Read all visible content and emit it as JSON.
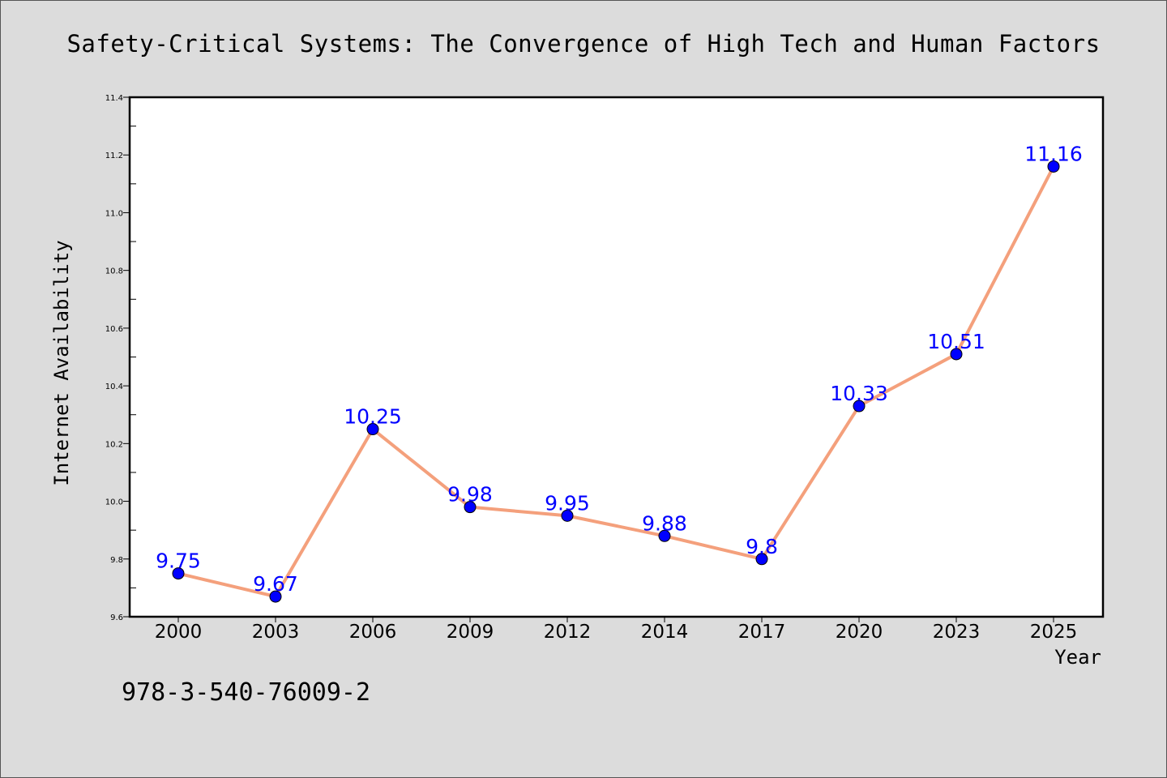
{
  "chart_data": {
    "type": "line",
    "title": "Safety-Critical Systems: The Convergence of High Tech and Human Factors",
    "xlabel": "Year",
    "ylabel": "Internet Availability",
    "categories": [
      "2000",
      "2003",
      "2006",
      "2009",
      "2012",
      "2014",
      "2017",
      "2020",
      "2023",
      "2025"
    ],
    "series": [
      {
        "values": [
          9.75,
          9.67,
          10.25,
          9.98,
          9.95,
          9.88,
          9.8,
          10.33,
          10.51,
          11.16
        ],
        "data_labels": [
          "9.75",
          "9.67",
          "10.25",
          "9.98",
          "9.95",
          "9.88",
          "9.8",
          "10.33",
          "10.51",
          "11.16"
        ]
      }
    ],
    "ylim": [
      9.6,
      11.4
    ],
    "yticks": [
      "9.6",
      "9.8",
      "10.0",
      "10.2",
      "10.4",
      "10.6",
      "10.8",
      "11.0",
      "11.2",
      "11.4"
    ],
    "grid": false,
    "colors": {
      "line": "#f4a07c",
      "marker": "#0000ff",
      "data_label": "#0000ff",
      "background": "#dcdcdc",
      "plot_background": "#ffffff"
    }
  },
  "annotation": "978-3-540-76009-2"
}
